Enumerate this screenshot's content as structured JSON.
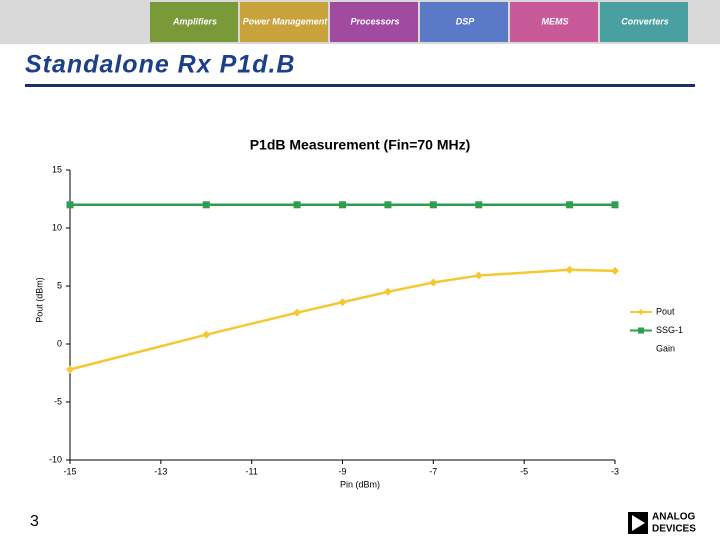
{
  "slide": {
    "title": "Standalone Rx P1d.B",
    "page_number": "3",
    "logo": [
      "ANALOG",
      "DEVICES"
    ],
    "banner": [
      "Amplifiers",
      "Power Management",
      "Processors",
      "DSP",
      "MEMS",
      "Converters"
    ]
  },
  "chart_data": {
    "type": "line",
    "title": "P1dB Measurement (Fin=70 MHz)",
    "x_label": "Pin (dBm)",
    "y_label": "Pout (dBm)",
    "x": [
      -15,
      -12,
      -10,
      -9,
      -8,
      -7,
      -6,
      -4,
      -3
    ],
    "series": [
      {
        "name": "Pout",
        "color": "#f5c832",
        "marker": "diamond",
        "values": [
          -2.2,
          0.8,
          2.7,
          3.6,
          4.5,
          5.3,
          5.9,
          6.4,
          6.3
        ]
      },
      {
        "name": "SSG-1",
        "color": "#2e9e4e",
        "marker": "square",
        "values": [
          12,
          12,
          12,
          12,
          12,
          12,
          12,
          12,
          12
        ]
      },
      {
        "name": "Gain",
        "color": "#ffffff",
        "marker": "none",
        "values": [
          null,
          null,
          null,
          null,
          null,
          null,
          null,
          null,
          null
        ]
      }
    ],
    "xlim": [
      -15,
      -3
    ],
    "xticks": [
      -15,
      -13,
      -11,
      -9,
      -7,
      -5,
      -3
    ],
    "ylim": [
      -10,
      15
    ],
    "yticks": [
      -10,
      -5,
      0,
      5,
      10,
      15
    ],
    "grid": false,
    "legend": "right"
  }
}
